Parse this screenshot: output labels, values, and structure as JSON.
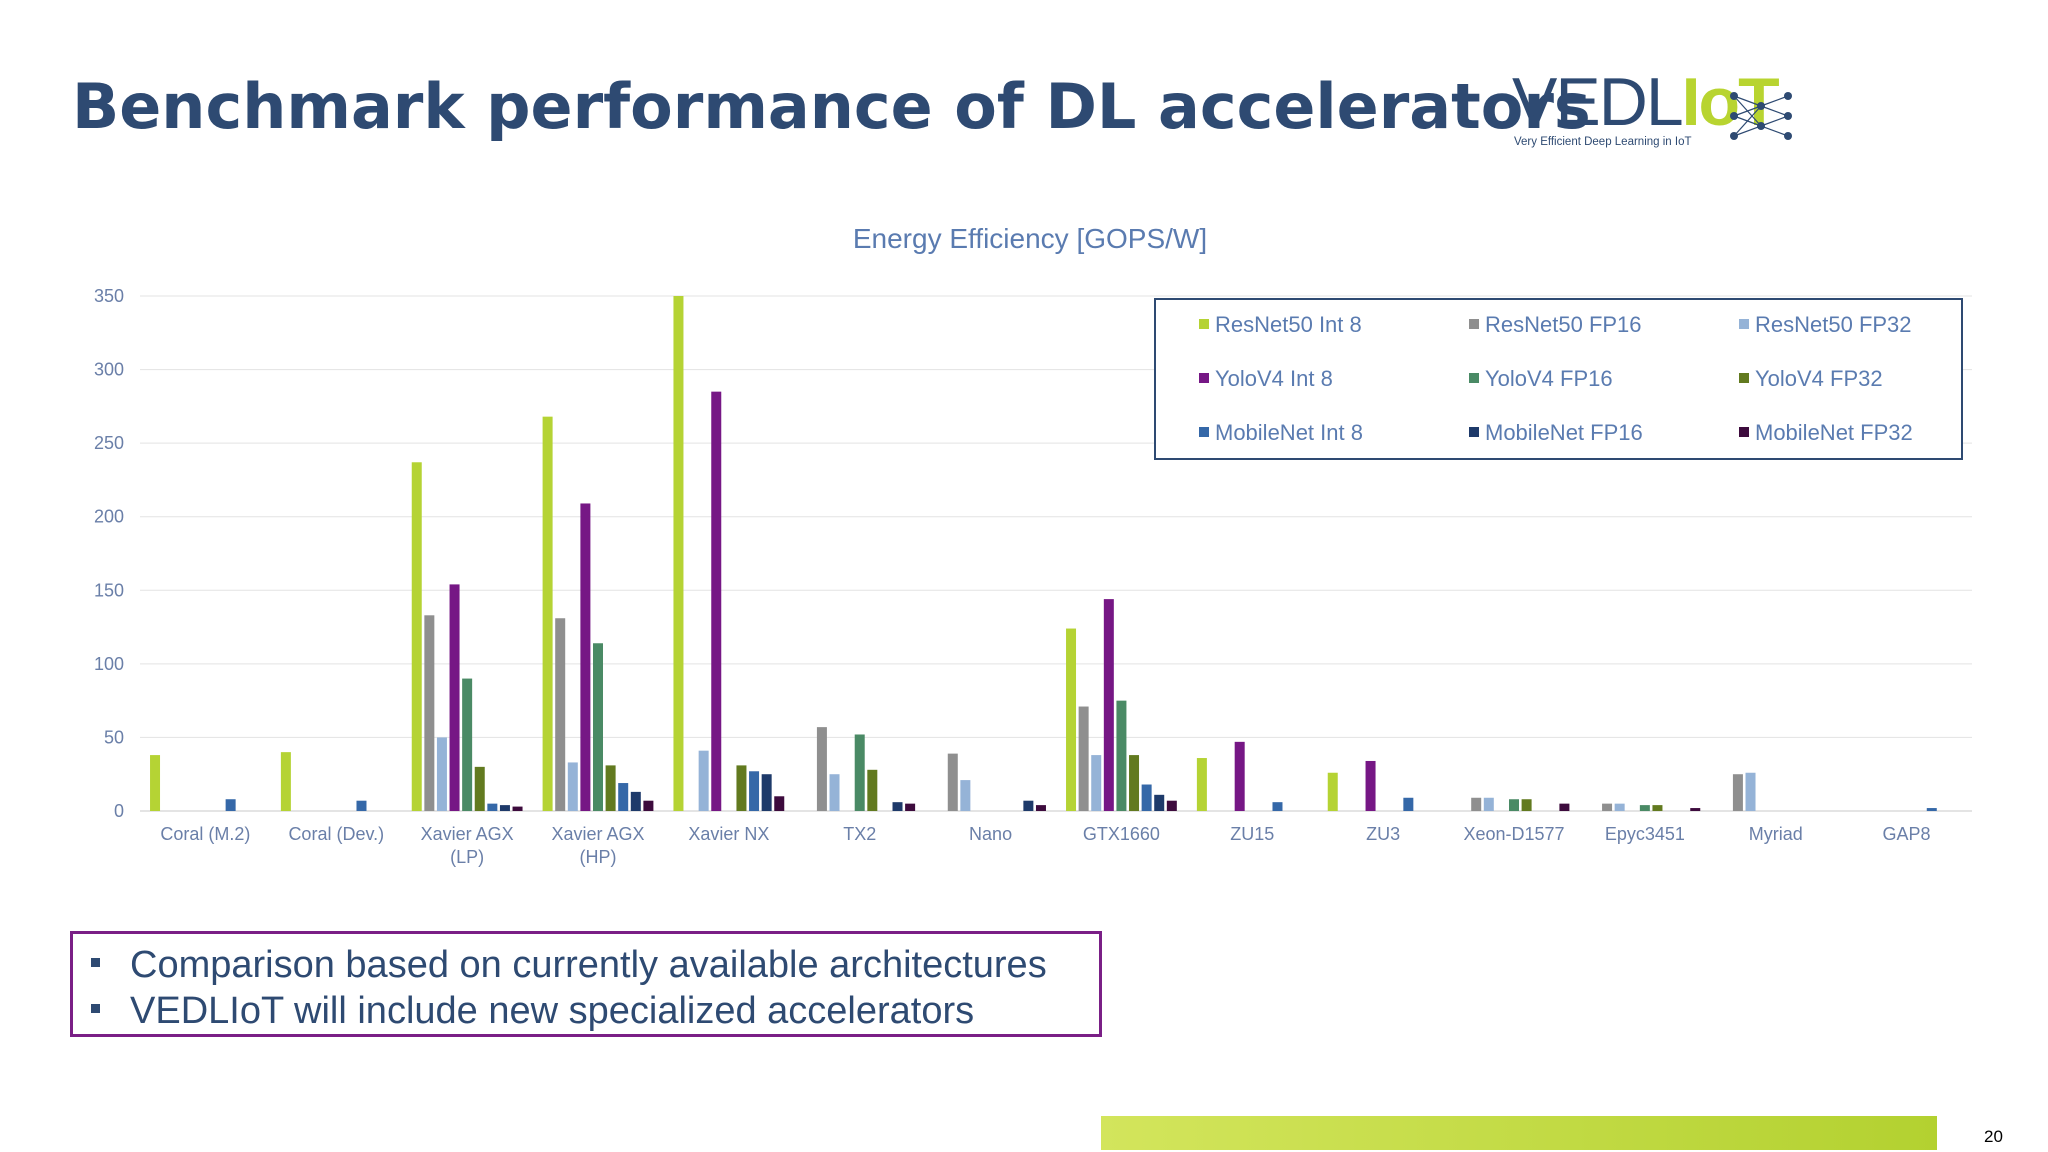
{
  "slide": {
    "title": "Benchmark performance of DL accelerators",
    "page_number": "20",
    "bullets": [
      "Comparison based on currently available architectures",
      "VEDLIoT will include new specialized accelerators"
    ]
  },
  "logo": {
    "word_main": "VEDL",
    "word_accent": "IoT",
    "tagline": "Very Efficient Deep Learning in IoT"
  },
  "colors": {
    "title": "#2e4a72",
    "accent_green": "#b8d430",
    "box_border": "#7a1f86"
  },
  "chart_data": {
    "type": "bar",
    "title": "Energy Efficiency [GOPS/W]",
    "xlabel": "",
    "ylabel": "",
    "ylim": [
      0,
      350
    ],
    "yticks": [
      0,
      50,
      100,
      150,
      200,
      250,
      300,
      350
    ],
    "grid": true,
    "legend_position": "top-right",
    "categories": [
      [
        "Coral (M.2)"
      ],
      [
        "Coral (Dev.)"
      ],
      [
        "Xavier AGX",
        "(LP)"
      ],
      [
        "Xavier AGX",
        "(HP)"
      ],
      [
        "Xavier NX"
      ],
      [
        "TX2"
      ],
      [
        "Nano"
      ],
      [
        "GTX1660"
      ],
      [
        "ZU15"
      ],
      [
        "ZU3"
      ],
      [
        "Xeon-D1577"
      ],
      [
        "Epyc3451"
      ],
      [
        "Myriad"
      ],
      [
        "GAP8"
      ]
    ],
    "series": [
      {
        "name": "ResNet50 Int 8",
        "color": "#b5d334",
        "values": [
          38,
          40,
          237,
          268,
          350,
          0,
          0,
          124,
          36,
          26,
          0,
          0,
          0,
          0
        ]
      },
      {
        "name": "ResNet50 FP16",
        "color": "#8f8f8f",
        "values": [
          0,
          0,
          133,
          131,
          0,
          57,
          39,
          71,
          0,
          0,
          9,
          5,
          25,
          0
        ]
      },
      {
        "name": "ResNet50 FP32",
        "color": "#95b3d7",
        "values": [
          0,
          0,
          50,
          33,
          41,
          25,
          21,
          38,
          0,
          0,
          9,
          5,
          26,
          0
        ]
      },
      {
        "name": "YoloV4 Int 8",
        "color": "#761785",
        "values": [
          0,
          0,
          154,
          209,
          285,
          0,
          0,
          144,
          47,
          34,
          0,
          0,
          0,
          0
        ]
      },
      {
        "name": "YoloV4 FP16",
        "color": "#4a8a65",
        "values": [
          0,
          0,
          90,
          114,
          0,
          52,
          0,
          75,
          0,
          0,
          8,
          4,
          0,
          0
        ]
      },
      {
        "name": "YoloV4 FP32",
        "color": "#627a1f",
        "values": [
          0,
          0,
          30,
          31,
          31,
          28,
          0,
          38,
          0,
          0,
          8,
          4,
          0,
          0
        ]
      },
      {
        "name": "MobileNet Int 8",
        "color": "#3568a8",
        "values": [
          8,
          7,
          5,
          19,
          27,
          0,
          0,
          18,
          6,
          9,
          0,
          0,
          0,
          2
        ]
      },
      {
        "name": "MobileNet FP16",
        "color": "#1e3a6a",
        "values": [
          0,
          0,
          4,
          13,
          25,
          6,
          7,
          11,
          0,
          0,
          0,
          0,
          0,
          0
        ]
      },
      {
        "name": "MobileNet FP32",
        "color": "#3d0b3d",
        "values": [
          0,
          0,
          3,
          7,
          10,
          5,
          4,
          7,
          0,
          0,
          5,
          2,
          0,
          0
        ]
      }
    ]
  }
}
